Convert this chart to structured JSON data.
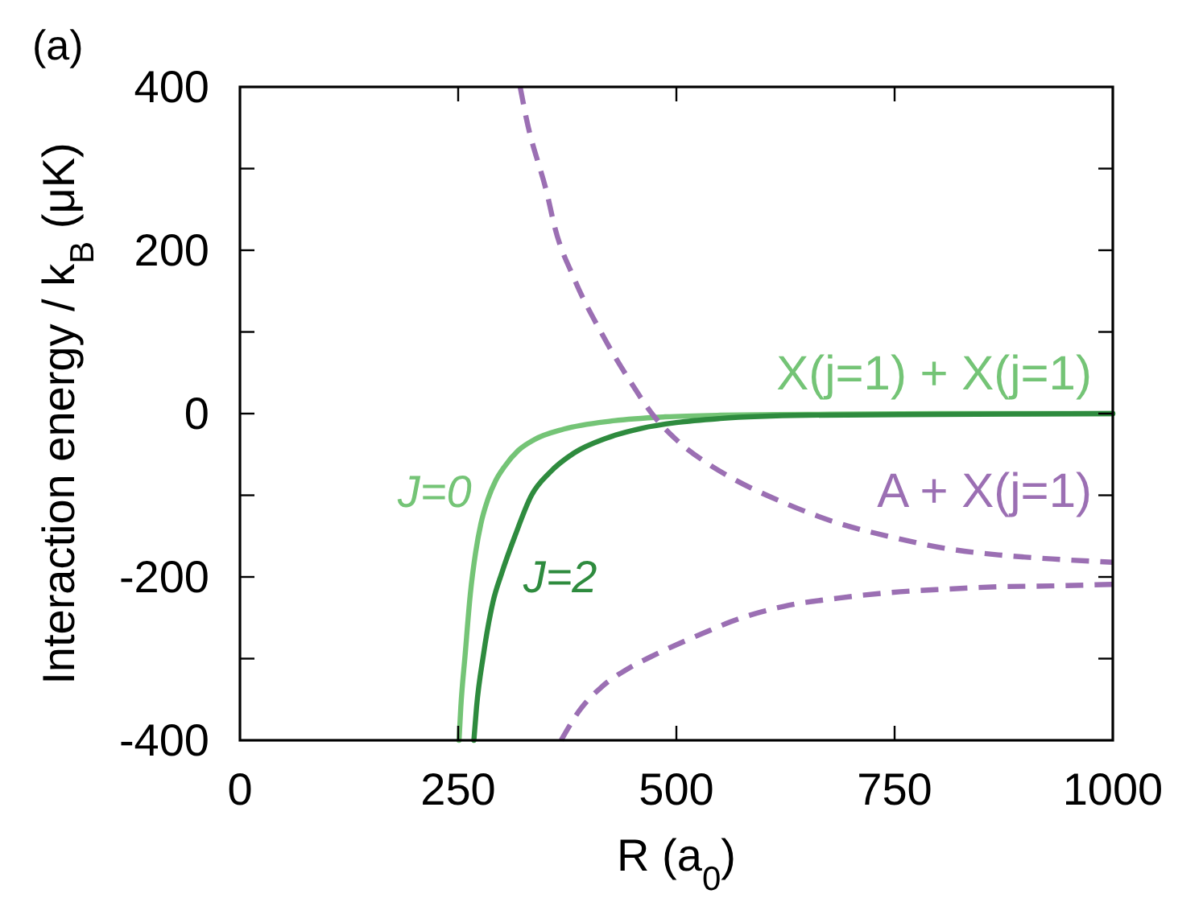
{
  "chart_data": {
    "type": "line",
    "title": "(a)",
    "xlabel": "R (a$_{0}$)",
    "ylabel": "Interaction energy / k$_{B}$ (μK)",
    "xlim": [
      0,
      1000
    ],
    "ylim": [
      -400,
      400
    ],
    "xticks": [
      0,
      250,
      500,
      750,
      1000
    ],
    "yticks": [
      -400,
      {
        "value": -300,
        "label": null
      },
      -200,
      {
        "value": -100,
        "label": null
      },
      0,
      {
        "value": 100,
        "label": null
      },
      200,
      {
        "value": 300,
        "label": null
      },
      400
    ],
    "annotations": [
      "X(j=1) + X(j=1)",
      "A + X(j=1)"
    ],
    "series": [
      {
        "name": "J=0",
        "color": "#74c476",
        "x": [
          251,
          253,
          258,
          264,
          270,
          276,
          284,
          293,
          303,
          319,
          337,
          371,
          426,
          487,
          550,
          650,
          800,
          1000
        ],
        "values": [
          -400,
          -360,
          -295,
          -220,
          -170,
          -135,
          -105,
          -82,
          -65,
          -45,
          -32,
          -19,
          -9,
          -4,
          -2,
          -1,
          0,
          0
        ]
      },
      {
        "name": "J=2",
        "color": "#2e8b3e",
        "x": [
          268,
          271,
          279,
          290,
          300,
          315,
          334,
          355,
          383,
          420,
          460,
          500,
          550,
          650,
          800,
          1000
        ],
        "values": [
          -400,
          -360,
          -295,
          -230,
          -195,
          -150,
          -100,
          -72,
          -48,
          -30,
          -18,
          -11,
          -6,
          -2,
          -1,
          0
        ]
      },
      {
        "color": "#9b6fb3",
        "line_style": "dashed",
        "x": [
          321,
          328,
          353,
          360,
          383,
          414,
          451,
          472,
          500,
          537,
          562,
          623,
          685,
          746,
          808,
          869,
          931,
          1000
        ],
        "values": [
          400,
          362,
          264,
          231,
          165,
          99,
          33,
          0,
          -32,
          -62,
          -78,
          -109,
          -134,
          -151,
          -165,
          -173,
          -178,
          -182
        ]
      },
      {
        "color": "#9b6fb3",
        "line_style": "dashed",
        "x": [
          368,
          390,
          414,
          445,
          476,
          537,
          562,
          623,
          685,
          746,
          808,
          869,
          931,
          1000
        ],
        "values": [
          -400,
          -362,
          -335,
          -312,
          -295,
          -266,
          -255,
          -236,
          -226,
          -219,
          -215,
          -212,
          -211,
          -209
        ]
      }
    ]
  }
}
